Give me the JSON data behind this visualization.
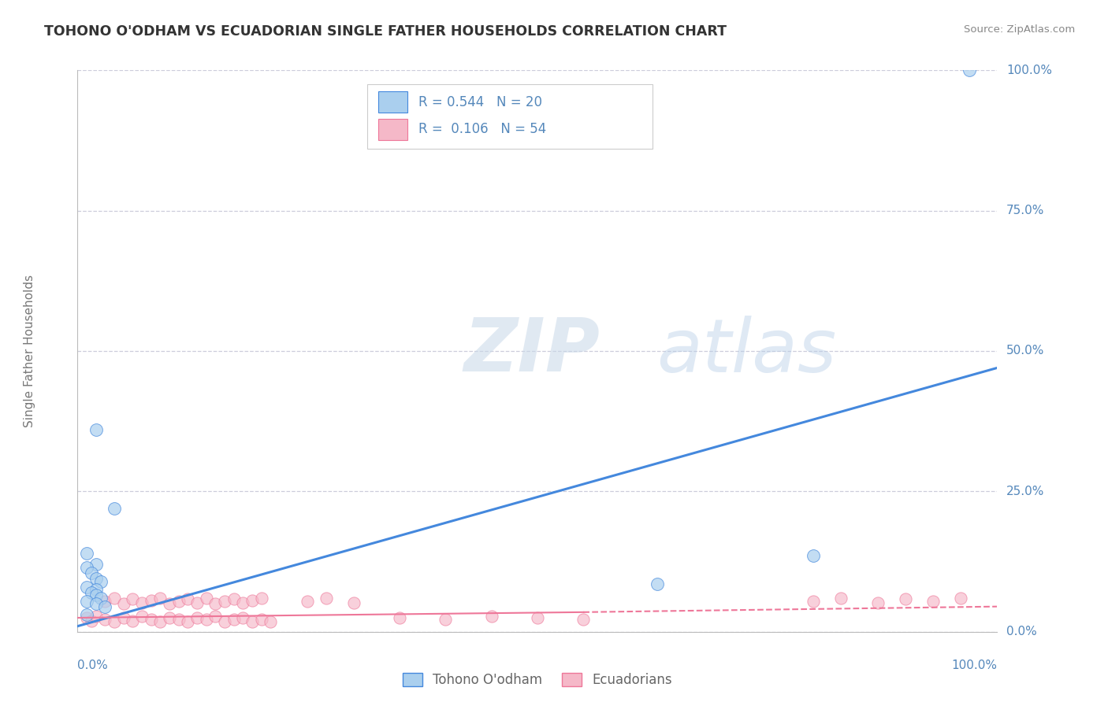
{
  "title": "TOHONO O'ODHAM VS ECUADORIAN SINGLE FATHER HOUSEHOLDS CORRELATION CHART",
  "source_text": "Source: ZipAtlas.com",
  "ylabel": "Single Father Households",
  "xlim": [
    0.0,
    1.0
  ],
  "ylim": [
    0.0,
    1.0
  ],
  "ytick_positions": [
    0.0,
    0.25,
    0.5,
    0.75,
    1.0
  ],
  "ytick_labels": [
    "0.0%",
    "25.0%",
    "50.0%",
    "75.0%",
    "100.0%"
  ],
  "grid_color": "#c8c8d8",
  "background_color": "#ffffff",
  "color_blue": "#aacfee",
  "color_pink": "#f5b8c8",
  "line_blue": "#4488dd",
  "line_pink": "#ee7799",
  "title_color": "#333333",
  "axis_label_color": "#5588bb",
  "tohono_scatter": [
    [
      0.02,
      0.36
    ],
    [
      0.04,
      0.22
    ],
    [
      0.01,
      0.14
    ],
    [
      0.02,
      0.12
    ],
    [
      0.01,
      0.115
    ],
    [
      0.015,
      0.105
    ],
    [
      0.02,
      0.095
    ],
    [
      0.025,
      0.09
    ],
    [
      0.01,
      0.08
    ],
    [
      0.02,
      0.075
    ],
    [
      0.015,
      0.07
    ],
    [
      0.02,
      0.065
    ],
    [
      0.025,
      0.06
    ],
    [
      0.01,
      0.055
    ],
    [
      0.02,
      0.05
    ],
    [
      0.03,
      0.045
    ],
    [
      0.63,
      0.085
    ],
    [
      0.8,
      0.135
    ],
    [
      0.97,
      1.0
    ],
    [
      0.01,
      0.03
    ]
  ],
  "ecuador_scatter": [
    [
      0.01,
      0.025
    ],
    [
      0.015,
      0.02
    ],
    [
      0.02,
      0.028
    ],
    [
      0.03,
      0.022
    ],
    [
      0.04,
      0.018
    ],
    [
      0.05,
      0.025
    ],
    [
      0.06,
      0.02
    ],
    [
      0.07,
      0.028
    ],
    [
      0.08,
      0.022
    ],
    [
      0.09,
      0.018
    ],
    [
      0.1,
      0.025
    ],
    [
      0.11,
      0.022
    ],
    [
      0.12,
      0.018
    ],
    [
      0.13,
      0.025
    ],
    [
      0.14,
      0.022
    ],
    [
      0.15,
      0.028
    ],
    [
      0.16,
      0.018
    ],
    [
      0.17,
      0.022
    ],
    [
      0.18,
      0.025
    ],
    [
      0.19,
      0.018
    ],
    [
      0.2,
      0.022
    ],
    [
      0.21,
      0.018
    ],
    [
      0.03,
      0.055
    ],
    [
      0.04,
      0.06
    ],
    [
      0.05,
      0.05
    ],
    [
      0.06,
      0.058
    ],
    [
      0.07,
      0.052
    ],
    [
      0.08,
      0.056
    ],
    [
      0.09,
      0.06
    ],
    [
      0.1,
      0.05
    ],
    [
      0.11,
      0.054
    ],
    [
      0.12,
      0.058
    ],
    [
      0.13,
      0.052
    ],
    [
      0.14,
      0.06
    ],
    [
      0.15,
      0.05
    ],
    [
      0.16,
      0.054
    ],
    [
      0.17,
      0.058
    ],
    [
      0.18,
      0.052
    ],
    [
      0.19,
      0.056
    ],
    [
      0.2,
      0.06
    ],
    [
      0.25,
      0.055
    ],
    [
      0.27,
      0.06
    ],
    [
      0.3,
      0.052
    ],
    [
      0.5,
      0.025
    ],
    [
      0.8,
      0.055
    ],
    [
      0.83,
      0.06
    ],
    [
      0.87,
      0.052
    ],
    [
      0.9,
      0.058
    ],
    [
      0.93,
      0.055
    ],
    [
      0.96,
      0.06
    ],
    [
      0.35,
      0.025
    ],
    [
      0.4,
      0.022
    ],
    [
      0.45,
      0.028
    ],
    [
      0.55,
      0.022
    ]
  ],
  "blue_line": [
    [
      0.0,
      0.01
    ],
    [
      1.0,
      0.47
    ]
  ],
  "pink_line": [
    [
      0.0,
      0.025
    ],
    [
      0.55,
      0.035
    ],
    [
      1.0,
      0.045
    ]
  ]
}
